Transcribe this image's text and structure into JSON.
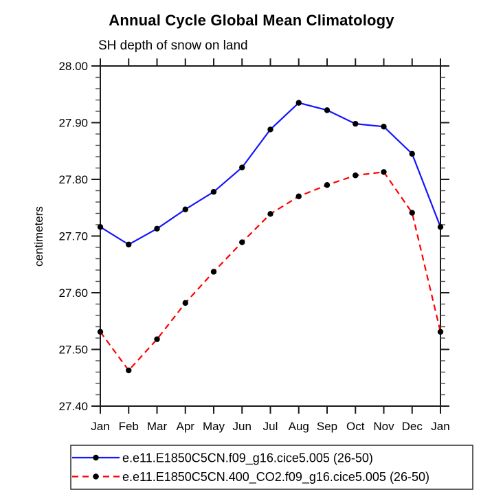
{
  "figure": {
    "title": "Annual Cycle Global Mean Climatology",
    "subtitle": "SH depth of snow on land"
  },
  "chart_data": {
    "type": "line",
    "title": "Annual Cycle Global Mean Climatology",
    "subtitle": "SH depth of snow on land",
    "xlabel": "",
    "ylabel": "centimeters",
    "categories": [
      "Jan",
      "Feb",
      "Mar",
      "Apr",
      "May",
      "Jun",
      "Jul",
      "Aug",
      "Sep",
      "Oct",
      "Nov",
      "Dec",
      "Jan"
    ],
    "ylim": [
      27.4,
      28.0
    ],
    "ytick_step": 0.1,
    "yminor_step": 0.02,
    "ytick_labels": [
      "27.40",
      "27.50",
      "27.60",
      "27.70",
      "27.80",
      "27.90",
      "28.00"
    ],
    "grid": false,
    "legend_position": "bottom",
    "series": [
      {
        "name": "e.e11.E1850C5CN.f09_g16.cice5.005 (26-50)",
        "color": "#1414ff",
        "line_style": "solid",
        "marker": "filled-circle",
        "marker_color": "#000000",
        "values": [
          27.716,
          27.685,
          27.713,
          27.747,
          27.778,
          27.821,
          27.888,
          27.935,
          27.922,
          27.898,
          27.893,
          27.845,
          27.716
        ]
      },
      {
        "name": "e.e11.E1850C5CN.400_CO2.f09_g16.cice5.005 (26-50)",
        "color": "#ff0000",
        "line_style": "dashed",
        "marker": "filled-circle",
        "marker_color": "#000000",
        "values": [
          27.531,
          27.463,
          27.518,
          27.582,
          27.637,
          27.689,
          27.739,
          27.77,
          27.79,
          27.807,
          27.813,
          27.741,
          27.531
        ]
      }
    ]
  },
  "colors": {
    "background": "#ffffff",
    "axis": "#1a1a1a",
    "minor_tick": "#4a4a4a",
    "legend_border": "#3a3a3a",
    "marker": "#000000"
  }
}
